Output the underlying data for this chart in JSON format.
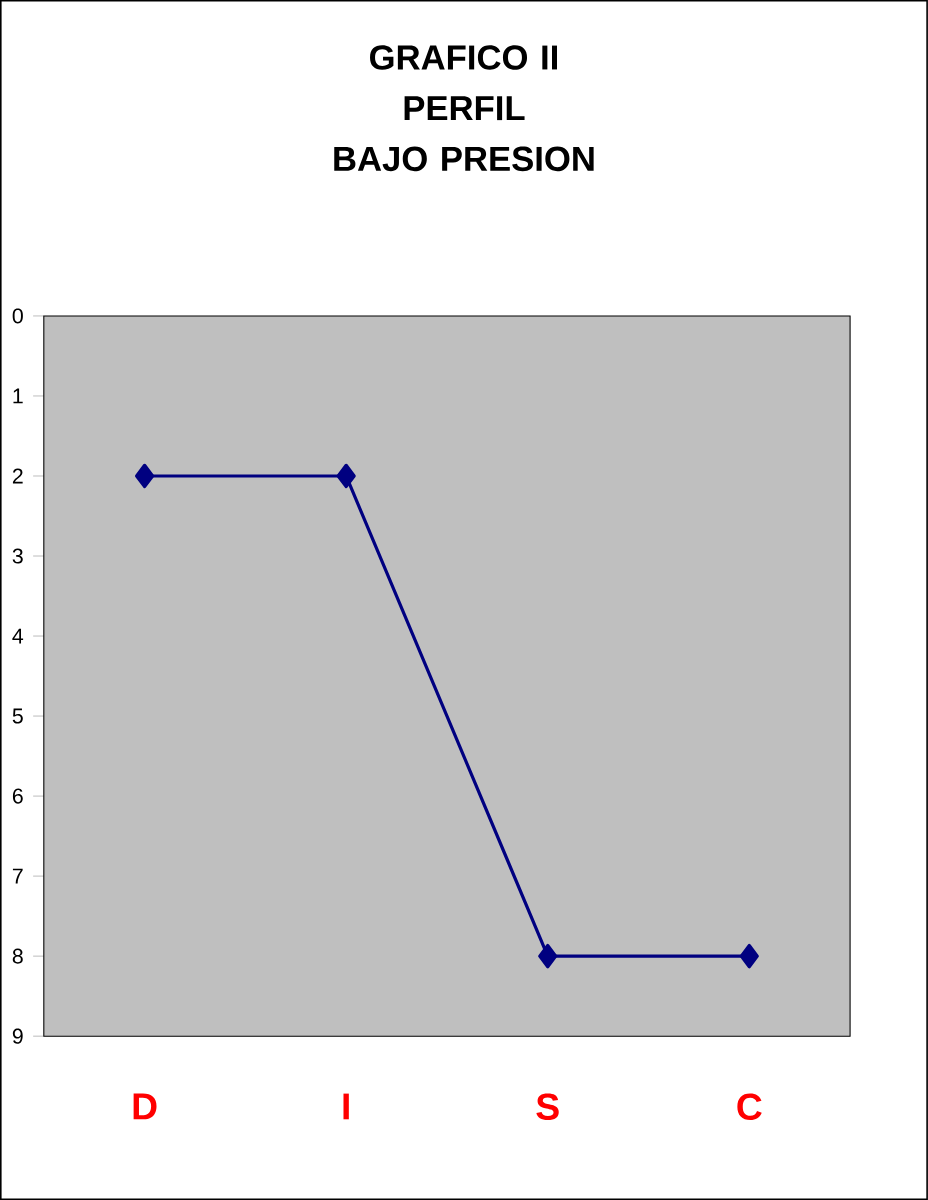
{
  "chart_data": {
    "type": "line",
    "title": "GRAFICO II\nPERFIL\nBAJO PRESION",
    "categories": [
      "D",
      "I",
      "S",
      "C"
    ],
    "series": [
      {
        "color": "#000080",
        "values": [
          2,
          2,
          8,
          8
        ]
      }
    ],
    "ylim": [
      9,
      0
    ],
    "yticks": [
      0,
      1,
      2,
      3,
      4,
      5,
      6,
      7,
      8,
      9
    ],
    "marker": "diamond",
    "line_style": "solid",
    "grid": false,
    "legend": false
  }
}
